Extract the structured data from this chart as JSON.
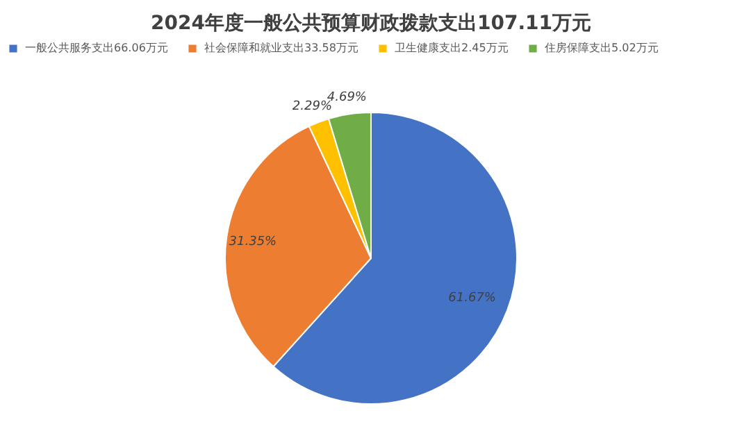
{
  "chart_data": {
    "type": "pie",
    "title": "2024年度一般公共预算财政拨款支出107.11万元",
    "categories": [
      "一般公共服务支出66.06万元",
      "社会保障和就业支出33.58万元",
      "卫生健康支出2.45万元",
      "住房保障支出5.02万元"
    ],
    "values": [
      61.67,
      31.35,
      2.29,
      4.69
    ],
    "colors": [
      "#4472c4",
      "#ed7d31",
      "#ffc000",
      "#70ad47"
    ],
    "value_labels": [
      "61.67%",
      "31.35%",
      "2.29%",
      "4.69%"
    ],
    "legend": "top"
  }
}
